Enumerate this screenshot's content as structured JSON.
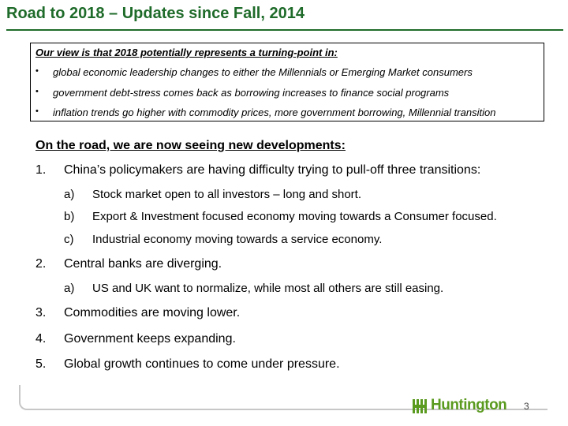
{
  "title": "Road to 2018 – Updates since Fall, 2014",
  "view": {
    "heading": "Our view is that 2018 potentially represents a turning-point in:",
    "bullet_symbol": "•",
    "items": [
      "global economic leadership changes to either the Millennials or Emerging Market consumers",
      "government debt-stress comes back as borrowing increases to finance social programs",
      "inflation trends go higher with commodity prices, more government borrowing, Millennial transition"
    ]
  },
  "road": {
    "heading": "On the road, we are now seeing new developments:",
    "items": [
      {
        "num": "1.",
        "text": "China’s policymakers are having difficulty trying to pull-off three transitions:",
        "subs": [
          {
            "letter": "a)",
            "text": "Stock market open to all investors – long and short."
          },
          {
            "letter": "b)",
            "text": "Export & Investment focused economy moving towards a Consumer focused."
          },
          {
            "letter": "c)",
            "text": "Industrial economy moving towards a service economy."
          }
        ]
      },
      {
        "num": "2.",
        "text": "Central banks are diverging.",
        "subs": [
          {
            "letter": "a)",
            "text": "US and UK want to normalize, while most all others are still easing."
          }
        ]
      },
      {
        "num": "3.",
        "text": "Commodities are moving lower.",
        "subs": []
      },
      {
        "num": "4.",
        "text": "Government keeps expanding.",
        "subs": []
      },
      {
        "num": "5.",
        "text": "Global growth continues to come under pressure.",
        "subs": []
      }
    ]
  },
  "footer": {
    "logo_text": "Huntington",
    "logo_icon": "huntington-logo-icon",
    "page_number": "3"
  },
  "colors": {
    "title": "#1f6b2a",
    "logo": "#5a9a1f"
  }
}
